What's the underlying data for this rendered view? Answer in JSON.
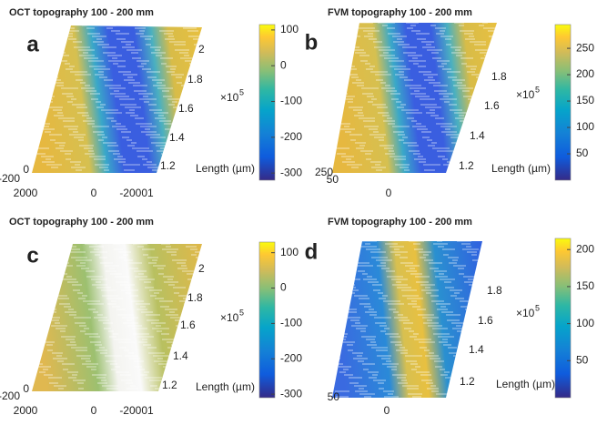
{
  "panels": [
    {
      "title": "OCT  topography 100  -  200 mm",
      "letter": "a",
      "colorbar": {
        "lim": [
          -320,
          115
        ],
        "ticks": [
          100,
          0,
          -100,
          -200,
          -300
        ]
      },
      "y_ticks": [
        "2",
        "1.8",
        "1.6",
        "1.4",
        "1.2"
      ],
      "y_exponent": {
        "base": "×10",
        "power": "5"
      },
      "y_label": "Length (µm)",
      "x_ticks": [
        "2000",
        "0",
        "-20001"
      ],
      "z_ticks": [
        "0",
        "-200"
      ]
    },
    {
      "title": "FVM  topography 100  -  200 mm",
      "letter": "b",
      "colorbar": {
        "lim": [
          0,
          295
        ],
        "ticks": [
          250,
          200,
          150,
          100,
          50
        ]
      },
      "y_ticks": [
        "1.8",
        "1.6",
        "1.4",
        "1.2"
      ],
      "y_exponent": {
        "base": "×10",
        "power": "5"
      },
      "y_label": "Length (µm)",
      "x_ticks": [
        "0"
      ],
      "z_ticks": [
        "250",
        "50"
      ]
    },
    {
      "title": "OCT  topography 100  -  200 mm",
      "letter": "c",
      "colorbar": {
        "lim": [
          -310,
          130
        ],
        "ticks": [
          100,
          0,
          -100,
          -200,
          -300
        ]
      },
      "y_ticks": [
        "2",
        "1.8",
        "1.6",
        "1.4",
        "1.2"
      ],
      "y_exponent": {
        "base": "×10",
        "power": "5"
      },
      "y_label": "Length (µm)",
      "x_ticks": [
        "2000",
        "0",
        "-20001"
      ],
      "z_ticks": [
        "0",
        "-200"
      ]
    },
    {
      "title": "FVM  topography 100  -  200 mm",
      "letter": "d",
      "colorbar": {
        "lim": [
          0,
          215
        ],
        "ticks": [
          200,
          150,
          100,
          50
        ]
      },
      "y_ticks": [
        "1.8",
        "1.6",
        "1.4",
        "1.2"
      ],
      "y_exponent": {
        "base": "×10",
        "power": "5"
      },
      "y_label": "Length (µm)",
      "x_ticks": [
        "0"
      ],
      "z_ticks": [
        "50"
      ]
    }
  ]
}
